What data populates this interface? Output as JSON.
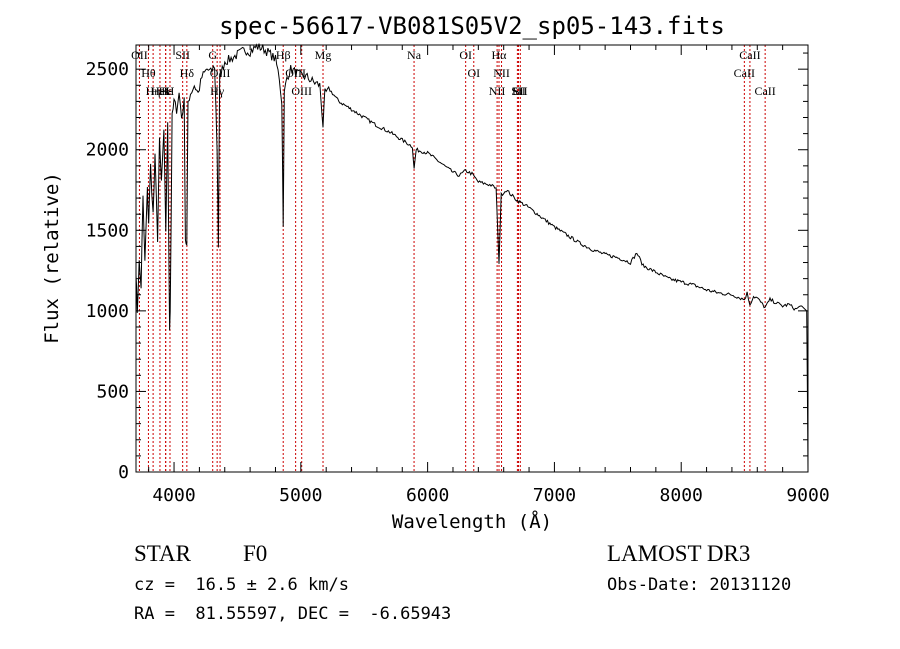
{
  "chart_data": {
    "type": "line",
    "title": "spec-56617-VB081S05V2_sp05-143.fits",
    "xlabel": "Wavelength (Å)",
    "ylabel": "Flux (relative)",
    "xlim": [
      3700,
      9000
    ],
    "ylim": [
      0,
      2650
    ],
    "xticks": [
      4000,
      5000,
      6000,
      7000,
      8000,
      9000
    ],
    "yticks": [
      0,
      500,
      1000,
      1500,
      2000,
      2500
    ],
    "grid": false,
    "series": [
      {
        "name": "flux",
        "x": [
          3700,
          3710,
          3725,
          3740,
          3755,
          3770,
          3790,
          3800,
          3815,
          3835,
          3850,
          3870,
          3885,
          3900,
          3920,
          3935,
          3950,
          3965,
          3970,
          3985,
          4000,
          4020,
          4040,
          4060,
          4080,
          4090,
          4101,
          4110,
          4130,
          4160,
          4190,
          4220,
          4260,
          4290,
          4320,
          4340,
          4350,
          4360,
          4380,
          4400,
          4440,
          4480,
          4520,
          4560,
          4600,
          4650,
          4700,
          4750,
          4800,
          4830,
          4850,
          4861,
          4870,
          4890,
          4920,
          4960,
          5000,
          5050,
          5100,
          5150,
          5175,
          5190,
          5220,
          5260,
          5300,
          5400,
          5500,
          5600,
          5700,
          5800,
          5880,
          5893,
          5910,
          6000,
          6100,
          6200,
          6250,
          6300,
          6350,
          6400,
          6450,
          6500,
          6540,
          6563,
          6580,
          6620,
          6700,
          6800,
          6900,
          7000,
          7100,
          7200,
          7300,
          7400,
          7500,
          7600,
          7650,
          7700,
          7800,
          7900,
          8000,
          8100,
          8200,
          8300,
          8400,
          8498,
          8520,
          8542,
          8570,
          8600,
          8662,
          8700,
          8750,
          8800,
          8850,
          8900,
          8950,
          8990,
          9000
        ],
        "y": [
          1250,
          1000,
          1300,
          1150,
          1700,
          1300,
          1750,
          1550,
          1900,
          1600,
          1950,
          1450,
          2050,
          1800,
          2100,
          1500,
          2150,
          900,
          1000,
          2200,
          2300,
          2250,
          2350,
          2200,
          2300,
          1450,
          1400,
          2300,
          2350,
          2400,
          2350,
          2450,
          2500,
          2480,
          2520,
          2000,
          1400,
          2450,
          2500,
          2550,
          2560,
          2580,
          2600,
          2620,
          2610,
          2640,
          2630,
          2600,
          2560,
          2450,
          2300,
          1550,
          2350,
          2450,
          2500,
          2480,
          2460,
          2450,
          2420,
          2400,
          2150,
          2350,
          2380,
          2340,
          2300,
          2250,
          2200,
          2150,
          2110,
          2060,
          2020,
          1880,
          2000,
          1980,
          1920,
          1860,
          1840,
          1870,
          1850,
          1800,
          1790,
          1780,
          1760,
          1300,
          1720,
          1750,
          1690,
          1640,
          1580,
          1520,
          1470,
          1420,
          1380,
          1350,
          1330,
          1300,
          1360,
          1280,
          1240,
          1200,
          1180,
          1160,
          1130,
          1110,
          1100,
          1070,
          1110,
          1040,
          1090,
          1080,
          1020,
          1070,
          1050,
          1030,
          1040,
          1010,
          1030,
          1000,
          0
        ]
      }
    ],
    "lines": [
      {
        "label": "OII",
        "wavelength": 3727
      },
      {
        "label": "Hθ",
        "wavelength": 3798
      },
      {
        "label": "Hη",
        "wavelength": 3835
      },
      {
        "label": "HeI",
        "wavelength": 3889
      },
      {
        "label": "Hε",
        "wavelength": 3934
      },
      {
        "label": "K",
        "wavelength": 3934
      },
      {
        "label": "SII",
        "wavelength": 4068
      },
      {
        "label": "H",
        "wavelength": 3968
      },
      {
        "label": "Hδ",
        "wavelength": 4101
      },
      {
        "label": "G",
        "wavelength": 4305
      },
      {
        "label": "OIII",
        "wavelength": 4363
      },
      {
        "label": "Hγ",
        "wavelength": 4340
      },
      {
        "label": "Hβ",
        "wavelength": 4861
      },
      {
        "label": "OIII",
        "wavelength": 4959
      },
      {
        "label": "OIII",
        "wavelength": 5007
      },
      {
        "label": "Mg",
        "wavelength": 5175
      },
      {
        "label": "Na",
        "wavelength": 5893
      },
      {
        "label": "OI",
        "wavelength": 6300
      },
      {
        "label": "OI",
        "wavelength": 6364
      },
      {
        "label": "Hα",
        "wavelength": 6563
      },
      {
        "label": "NII",
        "wavelength": 6548
      },
      {
        "label": "NII",
        "wavelength": 6583
      },
      {
        "label": "SII",
        "wavelength": 6717
      },
      {
        "label": "Li",
        "wavelength": 6708
      },
      {
        "label": "SII",
        "wavelength": 6731
      },
      {
        "label": "CaII",
        "wavelength": 8542
      },
      {
        "label": "CaII",
        "wavelength": 8498
      },
      {
        "label": "CaII",
        "wavelength": 8662
      }
    ]
  },
  "info": {
    "object_type": "STAR",
    "subclass": "F0",
    "redshift": "cz =  16.5 ± 2.6 km/s",
    "coords": "RA =  81.55597, DEC =  -6.65943",
    "survey": "LAMOST DR3",
    "obs_date": "Obs-Date: 20131120"
  },
  "colors": {
    "spectrum": "#000000",
    "line_marker": "#cc0000",
    "background": "#ffffff"
  }
}
